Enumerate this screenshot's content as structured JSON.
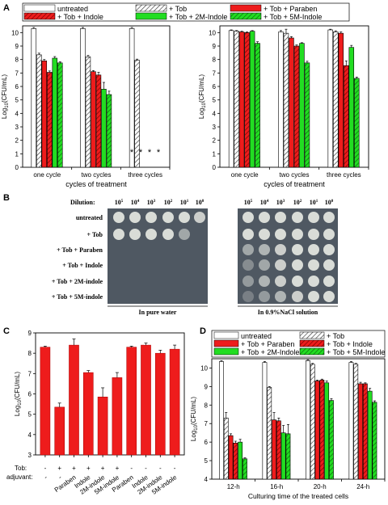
{
  "chart_data": [
    {
      "panel": "A",
      "type": "bar",
      "legend": [
        {
          "name": "untreated",
          "style": "white"
        },
        {
          "name": "+ Tob",
          "style": "hatch"
        },
        {
          "name": "+ Tob + Paraben",
          "style": "red"
        },
        {
          "name": "+ Tob + Indole",
          "style": "darkred-hatch"
        },
        {
          "name": "+ Tob + 2M-Indole",
          "style": "green"
        },
        {
          "name": "+ Tob + 5M-Indole",
          "style": "green-hatch"
        }
      ],
      "categories": [
        "one cycle",
        "two cycles",
        "three cycles"
      ],
      "xlabel": "cycles of treatment",
      "ylabel_base": "Log",
      "ylabel_sub": "10",
      "ylabel_rest": "(CFU/mL)",
      "ylim": [
        0,
        10.5
      ],
      "yticks": [
        0,
        1,
        2,
        3,
        4,
        5,
        6,
        7,
        8,
        9,
        10
      ],
      "series": [
        {
          "values": [
            10.3,
            10.3,
            10.3
          ],
          "errors": [
            0.08,
            0.08,
            0.08
          ]
        },
        {
          "values": [
            8.35,
            8.2,
            7.95
          ],
          "errors": [
            0.12,
            0.1,
            0.08
          ]
        },
        {
          "values": [
            7.9,
            7.1,
            null
          ],
          "errors": [
            0.1,
            0.08,
            null
          ]
        },
        {
          "values": [
            7.05,
            6.85,
            null
          ],
          "errors": [
            0.1,
            0.2,
            null
          ]
        },
        {
          "values": [
            8.1,
            5.8,
            null
          ],
          "errors": [
            0.12,
            0.5,
            null
          ]
        },
        {
          "values": [
            7.75,
            5.4,
            null
          ],
          "errors": [
            0.08,
            0.25,
            null
          ]
        }
      ],
      "annotations": [
        "*",
        "*",
        "*",
        "*"
      ]
    },
    {
      "panel": "A-right",
      "type": "bar",
      "categories": [
        "one cycle",
        "two cycles",
        "three cycles"
      ],
      "xlabel": "cycles of treatment",
      "ylabel_base": "Log",
      "ylabel_sub": "10",
      "ylabel_rest": "(CFU/mL)",
      "ylim": [
        0,
        10.5
      ],
      "yticks": [
        0,
        1,
        2,
        3,
        4,
        5,
        6,
        7,
        8,
        9,
        10
      ],
      "series": [
        {
          "values": [
            10.15,
            10.05,
            10.2
          ],
          "errors": [
            0.05,
            0.1,
            0.05
          ]
        },
        {
          "values": [
            10.1,
            9.95,
            10.05
          ],
          "errors": [
            0.05,
            0.3,
            0.08
          ]
        },
        {
          "values": [
            10.05,
            9.6,
            9.95
          ],
          "errors": [
            0.05,
            0.1,
            0.1
          ]
        },
        {
          "values": [
            10.0,
            9.0,
            7.55
          ],
          "errors": [
            0.05,
            0.08,
            0.35
          ]
        },
        {
          "values": [
            10.1,
            9.2,
            8.9
          ],
          "errors": [
            0.05,
            0.05,
            0.15
          ]
        },
        {
          "values": [
            9.2,
            7.75,
            6.6
          ],
          "errors": [
            0.12,
            0.12,
            0.1
          ]
        }
      ]
    },
    {
      "panel": "C",
      "type": "bar",
      "ylabel": "Log10(CFU/mL)",
      "ylabel_base": "Log",
      "ylabel_sub": "10",
      "ylabel_rest": "(CFU/mL)",
      "ylim": [
        3,
        9
      ],
      "yticks": [
        3,
        4,
        5,
        6,
        7,
        8,
        9
      ],
      "values": [
        8.3,
        5.35,
        8.4,
        7.05,
        5.85,
        6.8,
        8.3,
        8.4,
        8.0,
        8.2
      ],
      "errors": [
        0.05,
        0.2,
        0.3,
        0.1,
        0.45,
        0.25,
        0.05,
        0.1,
        0.15,
        0.2
      ],
      "tob_label": "Tob:",
      "adjuvant_label": "adjuvant:",
      "tob_marks": [
        "-",
        "+",
        "+",
        "+",
        "+",
        "+",
        "-",
        "-",
        "-",
        "-"
      ],
      "adjuvants": [
        "-",
        "-",
        "Paraben",
        "Indole",
        "2M-indole",
        "5M-indole",
        "Paraben",
        "Indole",
        "2M-indole",
        "5M-indole"
      ]
    },
    {
      "panel": "D",
      "type": "bar",
      "legend": [
        {
          "name": "untreated",
          "style": "white"
        },
        {
          "name": "+ Tob",
          "style": "hatch"
        },
        {
          "name": "+ Tob + Paraben",
          "style": "red"
        },
        {
          "name": "+ Tob + Indole",
          "style": "darkred-hatch"
        },
        {
          "name": "+ Tob + 2M-Indole",
          "style": "green"
        },
        {
          "name": "+ Tob + 5M-Indole",
          "style": "green-hatch"
        }
      ],
      "categories": [
        "12-h",
        "16-h",
        "20-h",
        "24-h"
      ],
      "xlabel": "Culturing time of the treated cells",
      "ylabel_base": "Log",
      "ylabel_sub": "10",
      "ylabel_rest": "(CFU/mL)",
      "ylim": [
        4,
        10.5
      ],
      "yticks": [
        4,
        5,
        6,
        7,
        8,
        9,
        10
      ],
      "series": [
        {
          "values": [
            10.35,
            10.3,
            10.4,
            10.3
          ],
          "errors": [
            0.05,
            0.05,
            0.05,
            0.05
          ]
        },
        {
          "values": [
            7.3,
            8.95,
            10.2,
            10.2
          ],
          "errors": [
            0.3,
            0.05,
            0.05,
            0.05
          ]
        },
        {
          "values": [
            6.35,
            7.2,
            9.3,
            9.15
          ],
          "errors": [
            0.1,
            0.4,
            0.05,
            0.08
          ]
        },
        {
          "values": [
            5.95,
            7.15,
            9.35,
            9.15
          ],
          "errors": [
            0.1,
            0.15,
            0.05,
            0.05
          ]
        },
        {
          "values": [
            6.0,
            6.5,
            9.2,
            8.75
          ],
          "errors": [
            0.15,
            0.4,
            0.1,
            0.15
          ]
        },
        {
          "values": [
            5.1,
            6.45,
            8.25,
            8.15
          ],
          "errors": [
            0.05,
            0.5,
            0.1,
            0.08
          ]
        }
      ]
    }
  ],
  "panel_labels": {
    "a": "A",
    "b": "B",
    "c": "C",
    "d": "D"
  },
  "gel": {
    "dilution_label": "Dilution:",
    "dilutions": [
      "10",
      "10",
      "10",
      "10",
      "10",
      "10"
    ],
    "dilution_exps": [
      "5",
      "4",
      "3",
      "2",
      "1",
      "0"
    ],
    "rows": [
      "untreated",
      "+ Tob",
      "+ Tob + Paraben",
      "+ Tob + Indole",
      "+ Tob + 2M-indole",
      "+ Tob + 5M-indole"
    ],
    "left_caption": "In pure water",
    "right_caption": "In 0.9%NaCl solution"
  },
  "colors": {
    "red": "#ee1c1c",
    "darkred": "#b01010",
    "green": "#22dd22",
    "green_dark": "#169916",
    "hatch": "#555555",
    "plate": "#4f5862"
  }
}
